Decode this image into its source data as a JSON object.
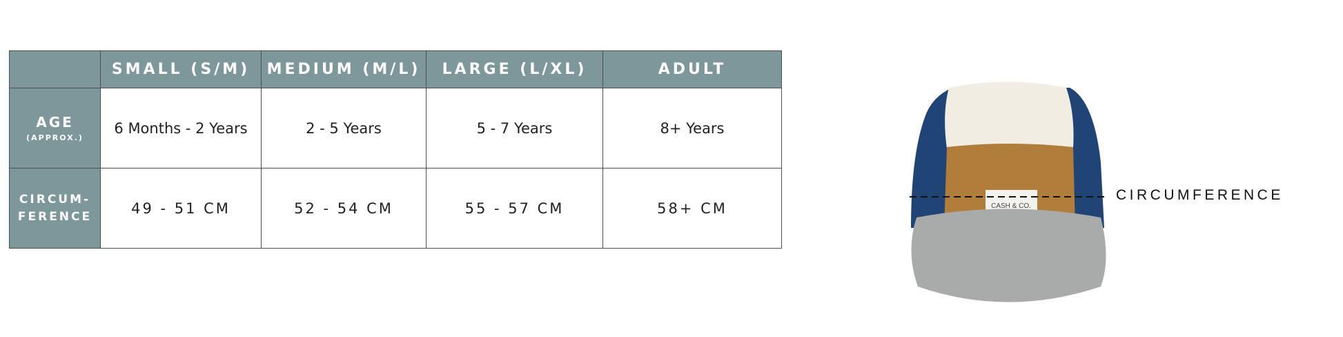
{
  "size_chart": {
    "columns": [
      "SMALL (S/M)",
      "MEDIUM (M/L)",
      "LARGE (L/XL)",
      "ADULT"
    ],
    "rows": [
      {
        "label": "AGE",
        "sublabel": "(APPROX.)",
        "values": [
          "6 Months - 2 Years",
          "2 - 5 Years",
          "5 - 7 Years",
          "8+ Years"
        ]
      },
      {
        "label_line1": "CIRCUM-",
        "label_line2": "FERENCE",
        "values": [
          "49 - 51 CM",
          "52 - 54 CM",
          "55 - 57 CM",
          "58+ CM"
        ]
      }
    ],
    "header_color": "#7e979b"
  },
  "hat": {
    "brand_label": "CASH & CO.",
    "measure_label": "CIRCUMFERENCE",
    "colors": {
      "crown": "#f1ede3",
      "front": "#b07e3a",
      "sides": "#1f4475",
      "brim": "#a9abaa"
    }
  }
}
